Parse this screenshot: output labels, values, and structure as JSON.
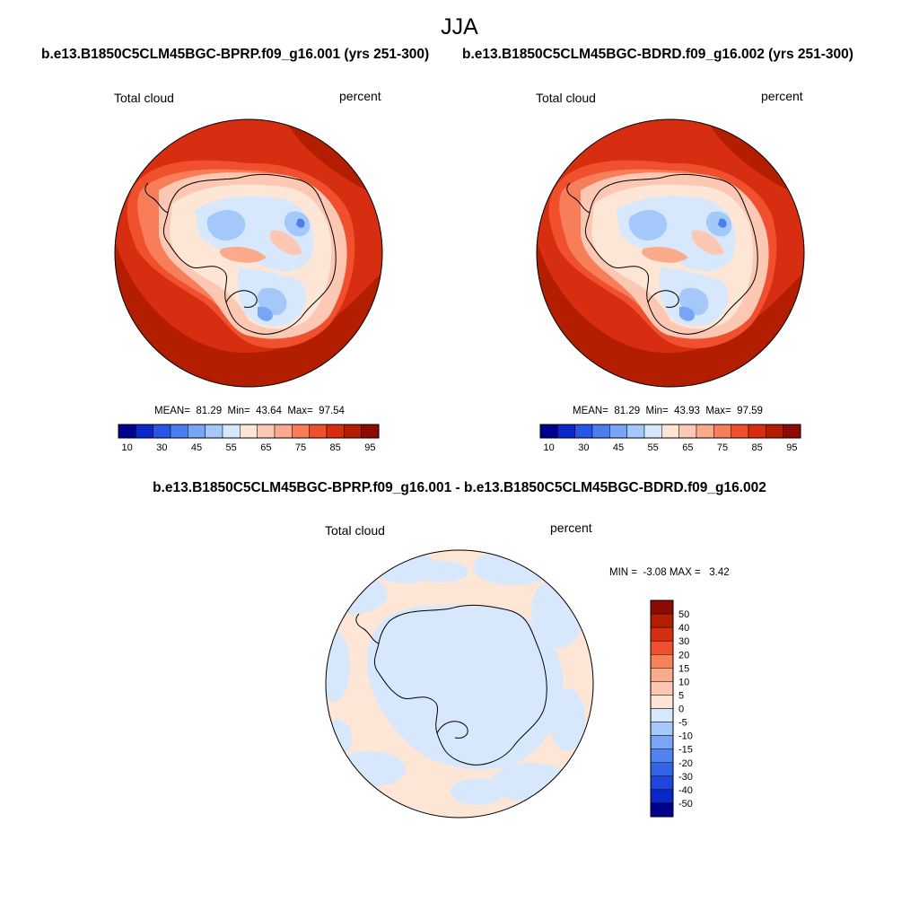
{
  "page": {
    "title": "JJA",
    "diff_title": "b.e13.B1850C5CLM45BGC-BPRP.f09_g16.001 - b.e13.B1850C5CLM45BGC-BDRD.f09_g16.002"
  },
  "colors": {
    "main_scale": [
      "#00008c",
      "#0a28c8",
      "#2855e6",
      "#4b7ff0",
      "#78a5f5",
      "#a5c8fa",
      "#d7e8fc",
      "#fde6d6",
      "#fcc8b4",
      "#fbaa8c",
      "#f87e5a",
      "#f0502d",
      "#d72d10",
      "#b41e00",
      "#8c0a00"
    ],
    "diff_scale": [
      "#00008c",
      "#0a28c8",
      "#1e46dc",
      "#3264e6",
      "#5082f0",
      "#78a5f5",
      "#a5c8fa",
      "#d7e8fc",
      "#fde6d6",
      "#fcc8b4",
      "#fbaa8c",
      "#f8825a",
      "#f0502d",
      "#d72d10",
      "#b41e00",
      "#8c0a00"
    ],
    "coastline": "#000000"
  },
  "chart_data": [
    {
      "type": "heatmap",
      "projection": "south polar stereographic",
      "title": "b.e13.B1850C5CLM45BGC-BPRP.f09_g16.001 (yrs 251-300)",
      "variable": "Total cloud",
      "units": "percent",
      "mean_label": "MEAN=",
      "min_label": "Min=",
      "max_label": "Max=",
      "mean": "81.29",
      "min": "43.64",
      "max": "97.54",
      "colorbar_ticks": [
        "10",
        "30",
        "45",
        "55",
        "65",
        "75",
        "85",
        "95"
      ],
      "colorbar_levels": [
        10,
        20,
        30,
        40,
        45,
        50,
        55,
        60,
        65,
        70,
        75,
        80,
        85,
        90,
        95
      ]
    },
    {
      "type": "heatmap",
      "projection": "south polar stereographic",
      "title": "b.e13.B1850C5CLM45BGC-BDRD.f09_g16.002 (yrs 251-300)",
      "variable": "Total cloud",
      "units": "percent",
      "mean_label": "MEAN=",
      "min_label": "Min=",
      "max_label": "Max=",
      "mean": "81.29",
      "min": "43.93",
      "max": "97.59",
      "colorbar_ticks": [
        "10",
        "30",
        "45",
        "55",
        "65",
        "75",
        "85",
        "95"
      ],
      "colorbar_levels": [
        10,
        20,
        30,
        40,
        45,
        50,
        55,
        60,
        65,
        70,
        75,
        80,
        85,
        90,
        95
      ]
    },
    {
      "type": "heatmap",
      "projection": "south polar stereographic",
      "title": "b.e13.B1850C5CLM45BGC-BPRP.f09_g16.001 - b.e13.B1850C5CLM45BGC-BDRD.f09_g16.002",
      "variable": "Total cloud",
      "units": "percent",
      "min_label": "MIN =",
      "max_label": "MAX =",
      "min": "-3.08",
      "max": "3.42",
      "colorbar_ticks": [
        "50",
        "40",
        "30",
        "20",
        "15",
        "10",
        "5",
        "0",
        "-5",
        "-10",
        "-15",
        "-20",
        "-30",
        "-40",
        "-50"
      ]
    }
  ]
}
